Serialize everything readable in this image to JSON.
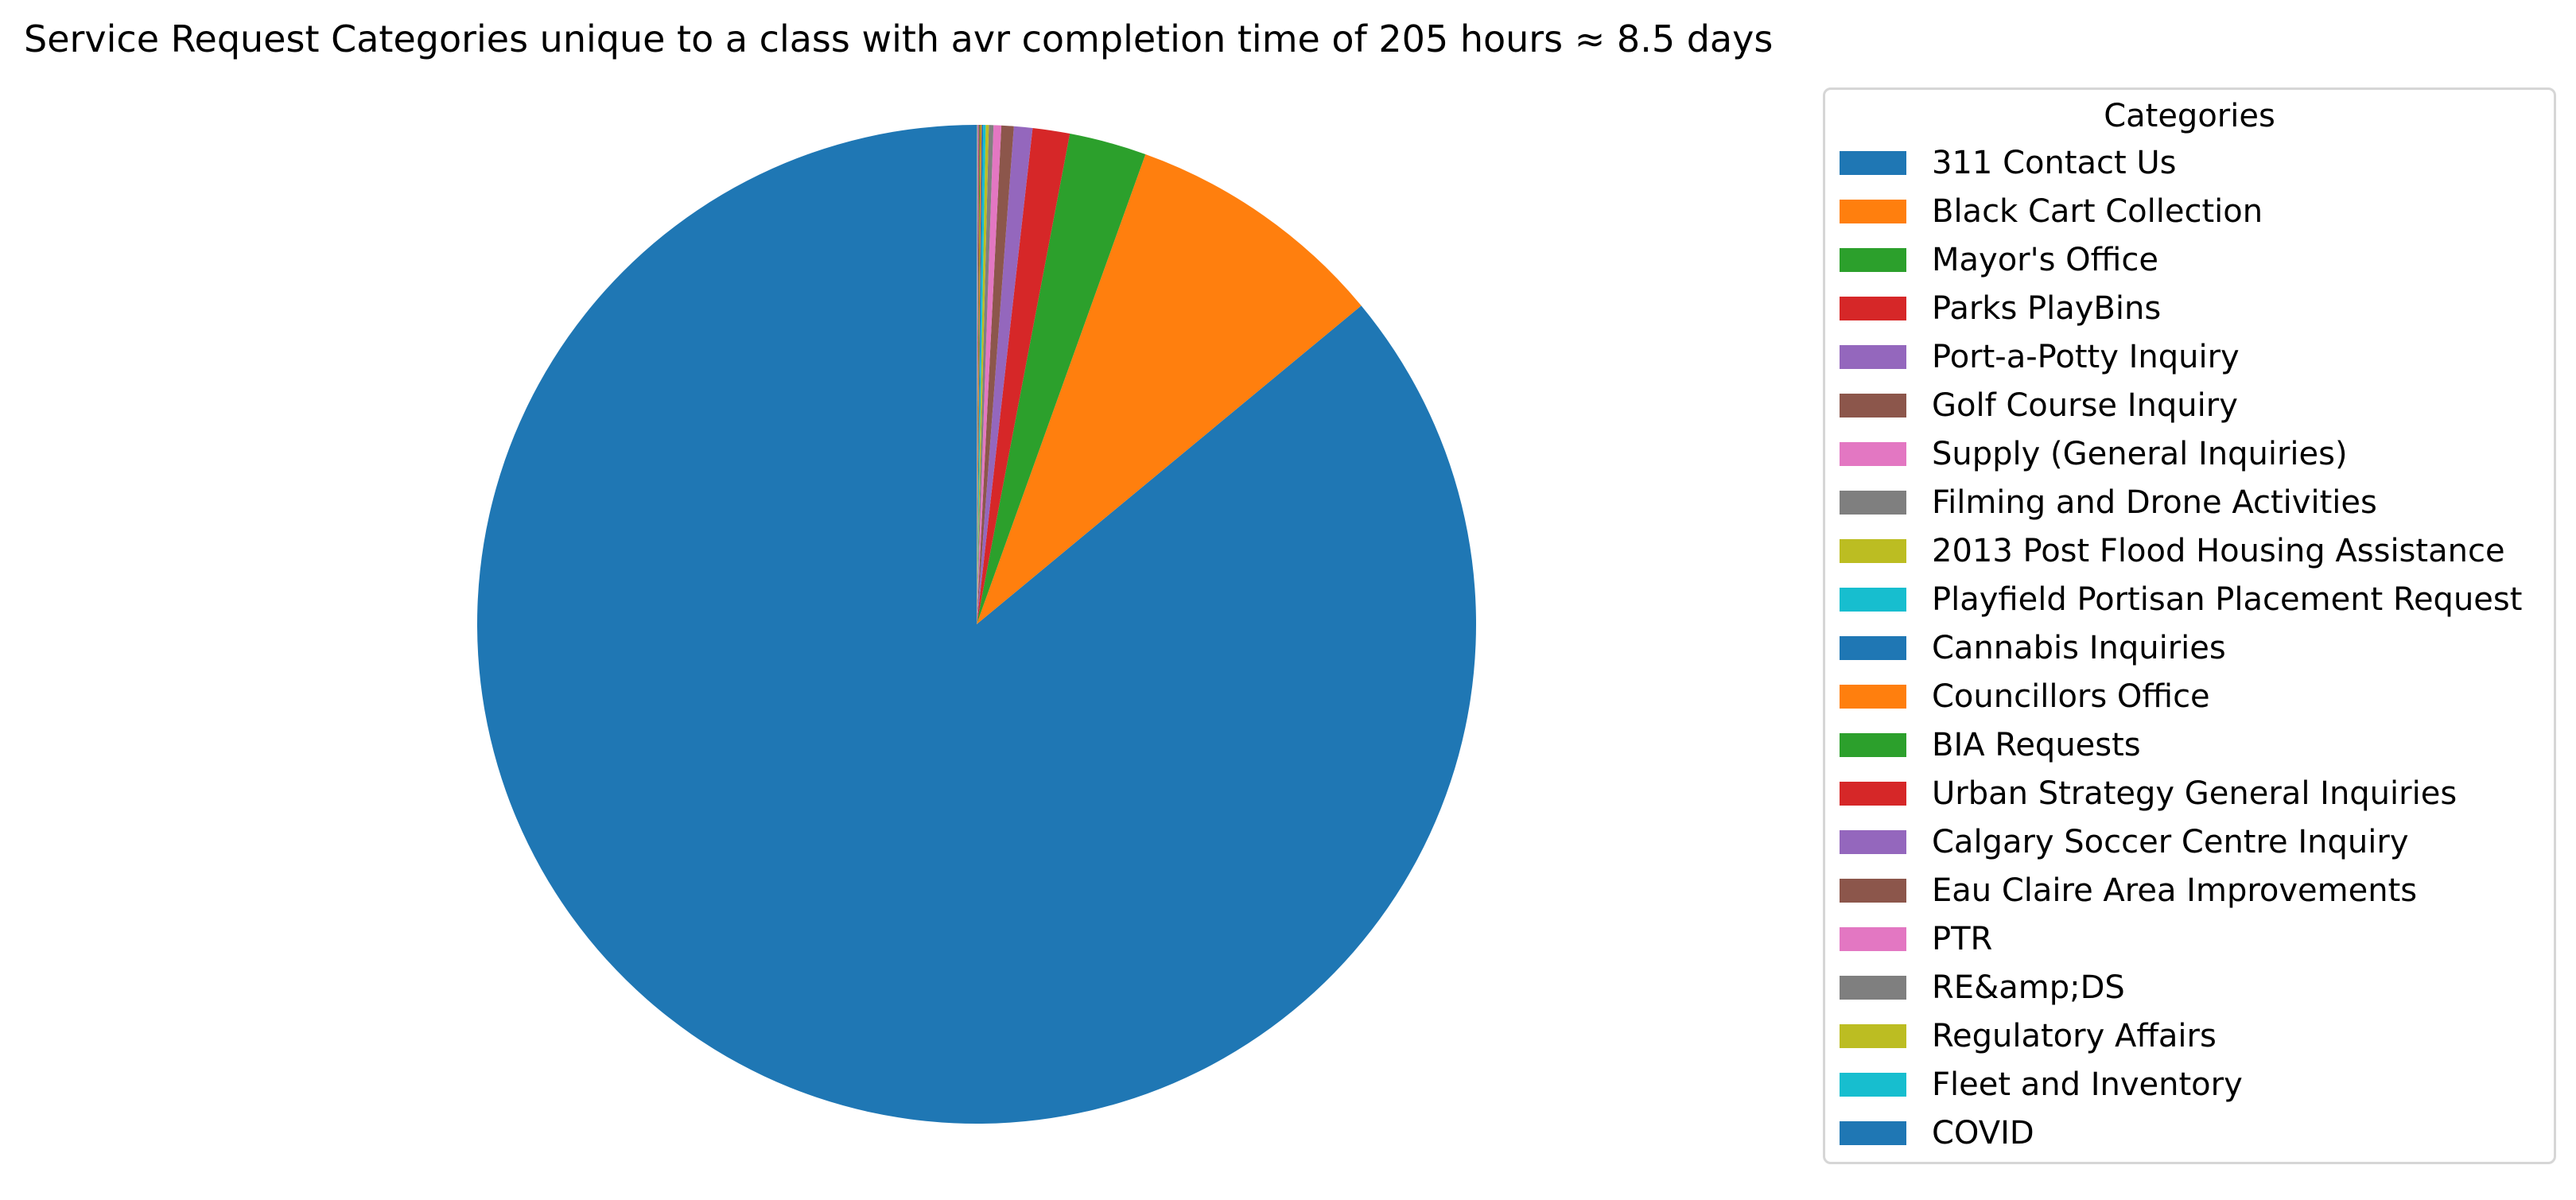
{
  "chart_data": {
    "type": "pie",
    "title": "Service Request Categories unique to a class with avr completion time of 205 hours ≈ 8.5 days",
    "legend_title": "Categories",
    "legend_placement": "right",
    "start_angle": "top, counter-clockwise",
    "categories": [
      "311 Contact Us",
      "Black Cart Collection",
      "Mayor's Office",
      "Parks PlayBins",
      "Port-a-Potty Inquiry",
      "Golf Course Inquiry",
      "Supply (General Inquiries)",
      "Filming and Drone Activities",
      "2013 Post Flood Housing Assistance",
      "Playfield Portisan Placement Request",
      "Cannabis Inquiries",
      "Councillors Office",
      "BIA Requests",
      "Urban Strategy General Inquiries",
      "Calgary Soccer Centre Inquiry",
      "Eau Claire Area Improvements",
      "PTR",
      "RE&amp;DS",
      "Regulatory Affairs",
      "Fleet and Inventory",
      "COVID"
    ],
    "values": [
      86.0,
      8.5,
      2.5,
      1.2,
      0.6,
      0.4,
      0.25,
      0.15,
      0.1,
      0.08,
      0.05,
      0.04,
      0.03,
      0.02,
      0.02,
      0.015,
      0.01,
      0.01,
      0.005,
      0.005,
      0.003
    ],
    "colors": [
      "#1f77b4",
      "#ff7f0e",
      "#2ca02c",
      "#d62728",
      "#9467bd",
      "#8c564b",
      "#e377c2",
      "#7f7f7f",
      "#bcbd22",
      "#17becf",
      "#1f77b4",
      "#ff7f0e",
      "#2ca02c",
      "#d62728",
      "#9467bd",
      "#8c564b",
      "#e377c2",
      "#7f7f7f",
      "#bcbd22",
      "#17becf",
      "#1f77b4"
    ]
  }
}
